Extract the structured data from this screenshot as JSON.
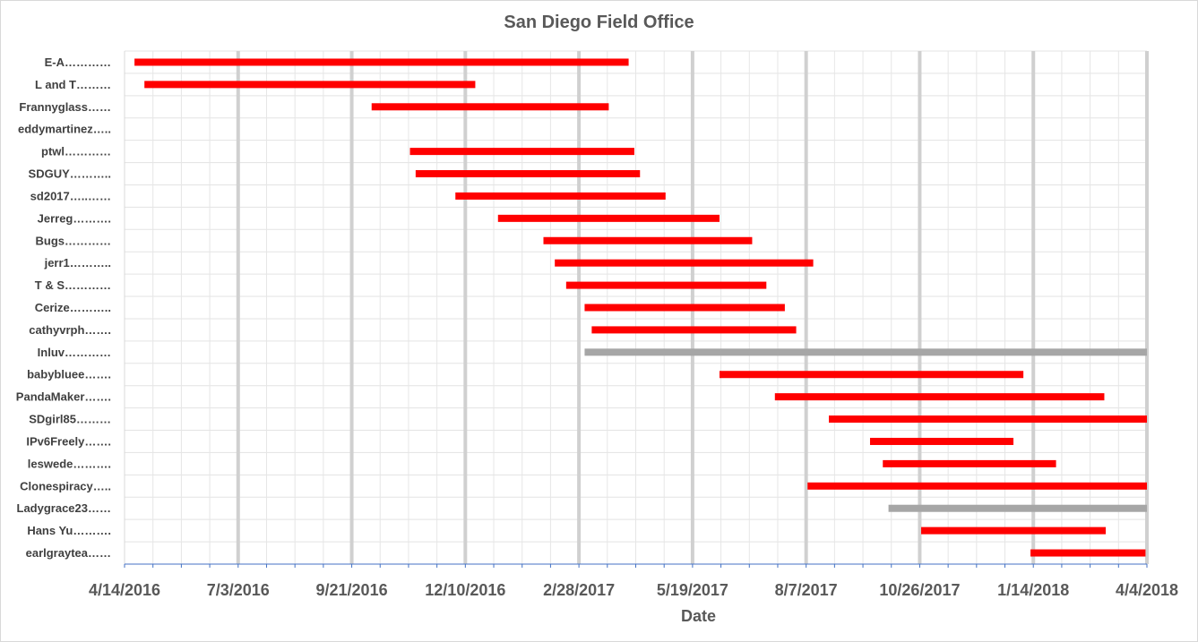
{
  "chart_data": {
    "type": "bar",
    "orientation": "horizontal-gantt",
    "title": "San Diego Field Office",
    "xlabel": "Date",
    "ylabel": "",
    "xlim": [
      "2016-04-14",
      "2018-04-04"
    ],
    "x_ticks": [
      "4/14/2016",
      "7/3/2016",
      "9/21/2016",
      "12/10/2016",
      "2/28/2017",
      "5/19/2017",
      "8/7/2017",
      "10/26/2017",
      "1/14/2018",
      "4/4/2018"
    ],
    "grid": true,
    "colors": {
      "active": "#ff0000",
      "ongoing": "#a6a6a6"
    },
    "tasks": [
      {
        "label": "E-A…………",
        "start": "2016-04-21",
        "end": "2017-04-04",
        "status": "active"
      },
      {
        "label": "L and T………",
        "start": "2016-04-28",
        "end": "2016-12-17",
        "status": "active"
      },
      {
        "label": "Frannyglass……",
        "start": "2016-10-05",
        "end": "2017-03-21",
        "status": "active"
      },
      {
        "label": "eddymartinez…..",
        "start": null,
        "end": null,
        "status": "active"
      },
      {
        "label": "ptwl…………",
        "start": "2016-11-01",
        "end": "2017-04-08",
        "status": "active"
      },
      {
        "label": "SDGUY………..",
        "start": "2016-11-05",
        "end": "2017-04-12",
        "status": "active"
      },
      {
        "label": "sd2017…..……",
        "start": "2016-12-03",
        "end": "2017-04-30",
        "status": "active"
      },
      {
        "label": "Jerreg……….",
        "start": "2017-01-02",
        "end": "2017-06-07",
        "status": "active"
      },
      {
        "label": "Bugs…………",
        "start": "2017-02-03",
        "end": "2017-06-30",
        "status": "active"
      },
      {
        "label": "jerr1………..",
        "start": "2017-02-11",
        "end": "2017-08-12",
        "status": "active"
      },
      {
        "label": "T & S…………",
        "start": "2017-02-19",
        "end": "2017-07-10",
        "status": "active"
      },
      {
        "label": "Cerize………..",
        "start": "2017-03-04",
        "end": "2017-07-23",
        "status": "active"
      },
      {
        "label": "cathyvrph…….",
        "start": "2017-03-09",
        "end": "2017-07-31",
        "status": "active"
      },
      {
        "label": "Inluv…………",
        "start": "2017-03-04",
        "end": "2018-04-04",
        "status": "ongoing"
      },
      {
        "label": "babybluee…….",
        "start": "2017-06-07",
        "end": "2018-01-07",
        "status": "active"
      },
      {
        "label": "PandaMaker…….",
        "start": "2017-07-16",
        "end": "2018-03-05",
        "status": "active"
      },
      {
        "label": "SDgirl85………",
        "start": "2017-08-23",
        "end": "2018-04-12",
        "status": "active"
      },
      {
        "label": "IPv6Freely…….",
        "start": "2017-09-21",
        "end": "2017-12-31",
        "status": "active"
      },
      {
        "label": "leswede……….",
        "start": "2017-09-30",
        "end": "2018-01-30",
        "status": "active"
      },
      {
        "label": "Clonespiracy…..",
        "start": "2017-08-08",
        "end": "2018-04-28",
        "status": "active"
      },
      {
        "label": "Ladygrace23……",
        "start": "2017-10-04",
        "end": "2018-04-04",
        "status": "ongoing"
      },
      {
        "label": "Hans Yu……….",
        "start": "2017-10-27",
        "end": "2018-03-06",
        "status": "active"
      },
      {
        "label": "earlgraytea……",
        "start": "2018-01-12",
        "end": "2018-04-03",
        "status": "active"
      }
    ]
  }
}
